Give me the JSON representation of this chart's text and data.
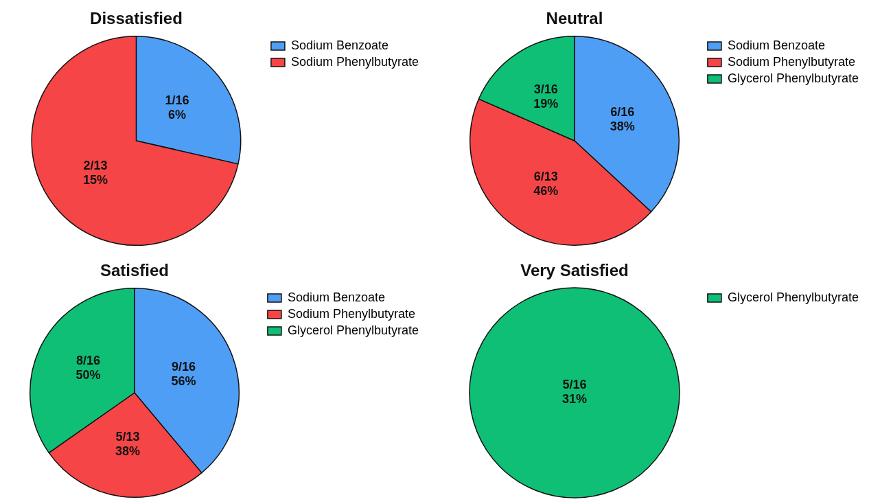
{
  "chart_data": [
    {
      "type": "pie",
      "title": "Dissatisfied",
      "categories": [
        "Sodium Benzoate",
        "Sodium Phenylbutyrate"
      ],
      "values": [
        6,
        15
      ],
      "colors": [
        "#4f9ef6",
        "#f64546"
      ],
      "value_labels": [
        "1/16\n6%",
        "2/13\n15%"
      ],
      "legend": "right"
    },
    {
      "type": "pie",
      "title": "Neutral",
      "categories": [
        "Sodium Benzoate",
        "Sodium Phenylbutyrate",
        "Glycerol Phenylbutyrate"
      ],
      "values": [
        38,
        46,
        19
      ],
      "colors": [
        "#4f9ef6",
        "#f64546",
        "#0fbf76"
      ],
      "value_labels": [
        "6/16\n38%",
        "6/13\n46%",
        "3/16\n19%"
      ],
      "legend": "right"
    },
    {
      "type": "pie",
      "title": "Satisfied",
      "categories": [
        "Sodium Benzoate",
        "Sodium Phenylbutyrate",
        "Glycerol Phenylbutyrate"
      ],
      "values": [
        56,
        38,
        50
      ],
      "colors": [
        "#4f9ef6",
        "#f64546",
        "#0fbf76"
      ],
      "value_labels": [
        "9/16\n56%",
        "5/13\n38%",
        "8/16\n50%"
      ],
      "legend": "right"
    },
    {
      "type": "pie",
      "title": "Very Satisfied",
      "categories": [
        "Glycerol Phenylbutyrate"
      ],
      "values": [
        31
      ],
      "colors": [
        "#0fbf76"
      ],
      "value_labels": [
        "5/16\n31%"
      ],
      "legend": "right"
    }
  ]
}
